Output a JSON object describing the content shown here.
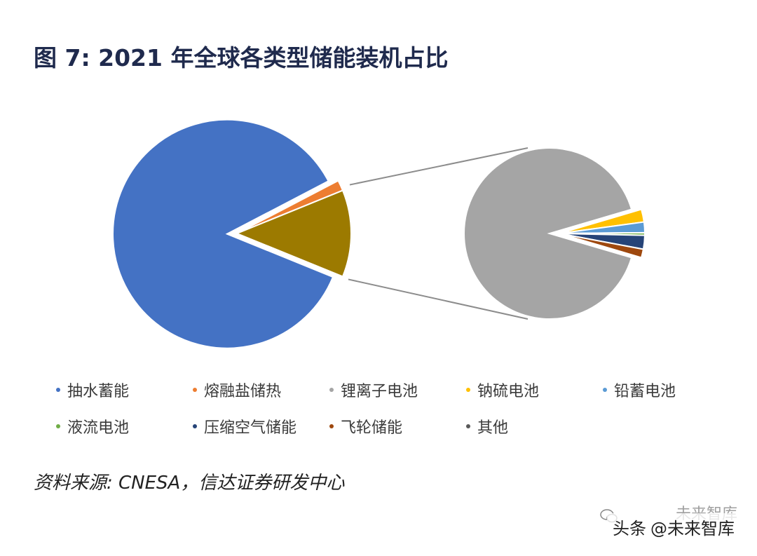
{
  "title": "图 7:  2021 年全球各类型储能装机占比",
  "source_note": "资料来源: CNESA，信达证券研发中心",
  "watermark": {
    "platform": "头条",
    "account": "@未来智库",
    "overlay_text": "未来智库"
  },
  "chart_data": {
    "type": "pie",
    "subtype": "pie-of-pie",
    "main_pie": {
      "slices": [
        {
          "label": "抽水蓄能",
          "value": 86.2,
          "color": "#4472c4"
        },
        {
          "label": "熔融盐储热",
          "value": 1.5,
          "color": "#ed7d31"
        },
        {
          "label": "其他",
          "value": 12.3,
          "color": "#9c7a00",
          "detail": true
        }
      ]
    },
    "secondary_pie": {
      "slices": [
        {
          "label": "锂离子电池",
          "value": 90.9,
          "color": "#a5a5a5"
        },
        {
          "label": "钠硫电池",
          "value": 2.4,
          "color": "#ffc000"
        },
        {
          "label": "铅蓄电池",
          "value": 2.0,
          "color": "#5b9bd5"
        },
        {
          "label": "液流电池",
          "value": 0.5,
          "color": "#70ad47"
        },
        {
          "label": "压缩空气储能",
          "value": 2.6,
          "color": "#264478"
        },
        {
          "label": "飞轮储能",
          "value": 1.6,
          "color": "#9e480e"
        }
      ]
    },
    "legend": [
      {
        "label": "抽水蓄能",
        "color": "#4472c4"
      },
      {
        "label": "熔融盐储热",
        "color": "#ed7d31"
      },
      {
        "label": "锂离子电池",
        "color": "#a5a5a5"
      },
      {
        "label": "钠硫电池",
        "color": "#ffc000"
      },
      {
        "label": "铅蓄电池",
        "color": "#5b9bd5"
      },
      {
        "label": "液流电池",
        "color": "#70ad47"
      },
      {
        "label": "压缩空气储能",
        "color": "#264478"
      },
      {
        "label": "飞轮储能",
        "color": "#9e480e"
      },
      {
        "label": "其他",
        "color": "#595959"
      }
    ],
    "legend_position": "bottom"
  }
}
